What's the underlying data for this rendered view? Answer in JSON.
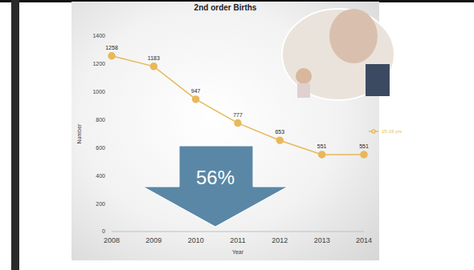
{
  "chart_data": {
    "type": "line",
    "title": "2nd order Births",
    "x_label": "Year",
    "y_label": "Number",
    "categories": [
      "2008",
      "2009",
      "2010",
      "2011",
      "2012",
      "2013",
      "2014"
    ],
    "series": [
      {
        "name": "15-19 yrs",
        "color": "#e8b85a",
        "marker": "circle",
        "values": [
          1258,
          1183,
          947,
          777,
          653,
          551,
          551
        ]
      }
    ],
    "ylim": [
      0,
      1400
    ],
    "yticks": [
      0,
      200,
      400,
      600,
      800,
      1000,
      1200,
      1400
    ],
    "grid": false,
    "legend": "right",
    "data_labels": true,
    "annotations": [
      "56%"
    ]
  }
}
